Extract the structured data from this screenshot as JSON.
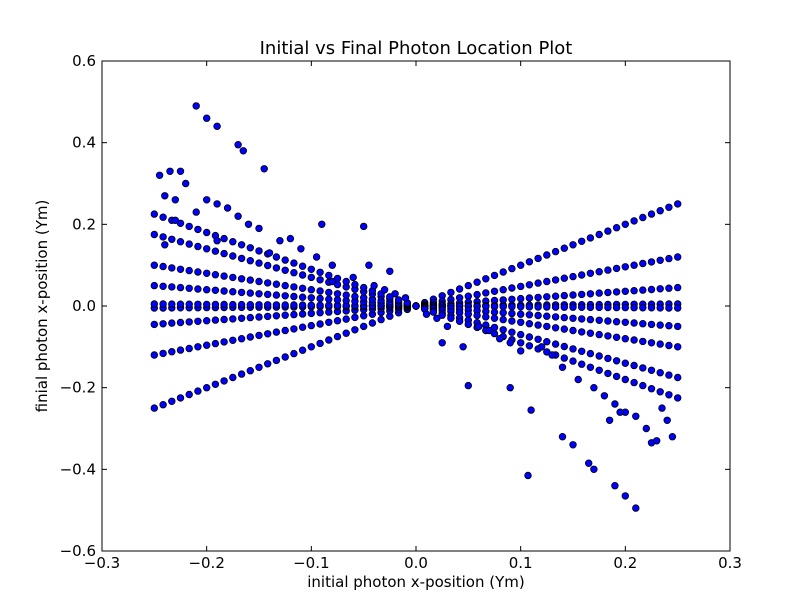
{
  "chart_data": {
    "type": "scatter",
    "title": "Initial vs Final Photon Location Plot",
    "xlabel": "initial photon x-position (Ym)",
    "ylabel": "finial photon x-position (Ym)",
    "xlim": [
      -0.3,
      0.3
    ],
    "ylim": [
      -0.6,
      0.6
    ],
    "xticks": [
      -0.3,
      -0.2,
      -0.1,
      0.0,
      0.1,
      0.2,
      0.3
    ],
    "xtick_labels": [
      "−0.3",
      "−0.2",
      "−0.1",
      "0.0",
      "0.1",
      "0.2",
      "0.3"
    ],
    "yticks": [
      -0.6,
      -0.4,
      -0.2,
      0.0,
      0.2,
      0.4,
      0.6
    ],
    "ytick_labels": [
      "−0.6",
      "−0.4",
      "−0.2",
      "0.0",
      "0.2",
      "0.4",
      "0.6"
    ],
    "grid": false,
    "marker_color": "#0000ff",
    "marker_edge": "#000000",
    "series": [
      {
        "line_trends": [
          {
            "x_range": [
              -0.25,
              0.25
            ],
            "slope": 1.0
          },
          {
            "x_range": [
              -0.25,
              0.25
            ],
            "slope": 0.48
          },
          {
            "x_range": [
              -0.25,
              0.25
            ],
            "slope": 0.18
          },
          {
            "x_range": [
              -0.25,
              0.25
            ],
            "slope": 0.02
          },
          {
            "x_range": [
              -0.25,
              0.25
            ],
            "slope": -0.02
          },
          {
            "x_range": [
              -0.25,
              0.25
            ],
            "slope": -0.2
          },
          {
            "x_range": [
              -0.25,
              0.25
            ],
            "slope": -0.4
          },
          {
            "x_range": [
              -0.25,
              0.25
            ],
            "slope": -0.7
          },
          {
            "x_range": [
              -0.25,
              0.25
            ],
            "slope": -0.9
          }
        ],
        "scattered_points": [
          [
            -0.21,
            0.49
          ],
          [
            -0.2,
            0.46
          ],
          [
            -0.19,
            0.44
          ],
          [
            -0.17,
            0.395
          ],
          [
            -0.165,
            0.38
          ],
          [
            -0.145,
            0.336
          ],
          [
            -0.245,
            0.32
          ],
          [
            -0.235,
            0.33
          ],
          [
            -0.225,
            0.33
          ],
          [
            -0.22,
            0.3
          ],
          [
            -0.24,
            0.27
          ],
          [
            -0.23,
            0.26
          ],
          [
            -0.2,
            0.26
          ],
          [
            -0.19,
            0.25
          ],
          [
            -0.18,
            0.24
          ],
          [
            -0.21,
            0.23
          ],
          [
            -0.17,
            0.22
          ],
          [
            -0.16,
            0.2
          ],
          [
            -0.15,
            0.19
          ],
          [
            -0.09,
            0.2
          ],
          [
            -0.05,
            0.195
          ],
          [
            -0.13,
            0.16
          ],
          [
            -0.12,
            0.165
          ],
          [
            -0.11,
            0.14
          ],
          [
            -0.095,
            0.12
          ],
          [
            -0.08,
            0.1
          ],
          [
            -0.045,
            0.1
          ],
          [
            -0.025,
            0.085
          ],
          [
            -0.06,
            0.07
          ],
          [
            -0.04,
            0.05
          ],
          [
            -0.03,
            0.04
          ],
          [
            -0.02,
            0.03
          ],
          [
            -0.01,
            0.02
          ],
          [
            0.01,
            -0.02
          ],
          [
            0.02,
            -0.03
          ],
          [
            0.03,
            -0.05
          ],
          [
            0.045,
            -0.1
          ],
          [
            0.05,
            -0.195
          ],
          [
            0.09,
            -0.2
          ],
          [
            0.107,
            -0.415
          ],
          [
            0.11,
            -0.255
          ],
          [
            0.14,
            -0.32
          ],
          [
            0.15,
            -0.34
          ],
          [
            0.165,
            -0.385
          ],
          [
            0.17,
            -0.4
          ],
          [
            0.19,
            -0.44
          ],
          [
            0.2,
            -0.465
          ],
          [
            0.21,
            -0.495
          ],
          [
            0.12,
            -0.1
          ],
          [
            0.13,
            -0.12
          ],
          [
            0.14,
            -0.15
          ],
          [
            0.155,
            -0.18
          ],
          [
            0.17,
            -0.2
          ],
          [
            0.18,
            -0.22
          ],
          [
            0.19,
            -0.24
          ],
          [
            0.2,
            -0.26
          ],
          [
            0.21,
            -0.27
          ],
          [
            0.22,
            -0.3
          ],
          [
            0.225,
            -0.335
          ],
          [
            0.235,
            -0.25
          ],
          [
            0.245,
            -0.32
          ],
          [
            0.24,
            -0.28
          ],
          [
            0.23,
            -0.33
          ],
          [
            0.185,
            -0.28
          ],
          [
            0.195,
            -0.26
          ],
          [
            0.08,
            -0.08
          ],
          [
            0.09,
            -0.09
          ],
          [
            0.1,
            -0.11
          ],
          [
            -0.24,
            0.15
          ],
          [
            -0.14,
            0.13
          ],
          [
            -0.08,
            0.06
          ],
          [
            0.06,
            -0.05
          ],
          [
            0.07,
            -0.06
          ],
          [
            0.025,
            -0.09
          ],
          [
            -0.23,
            0.21
          ],
          [
            -0.19,
            0.16
          ]
        ]
      }
    ]
  }
}
